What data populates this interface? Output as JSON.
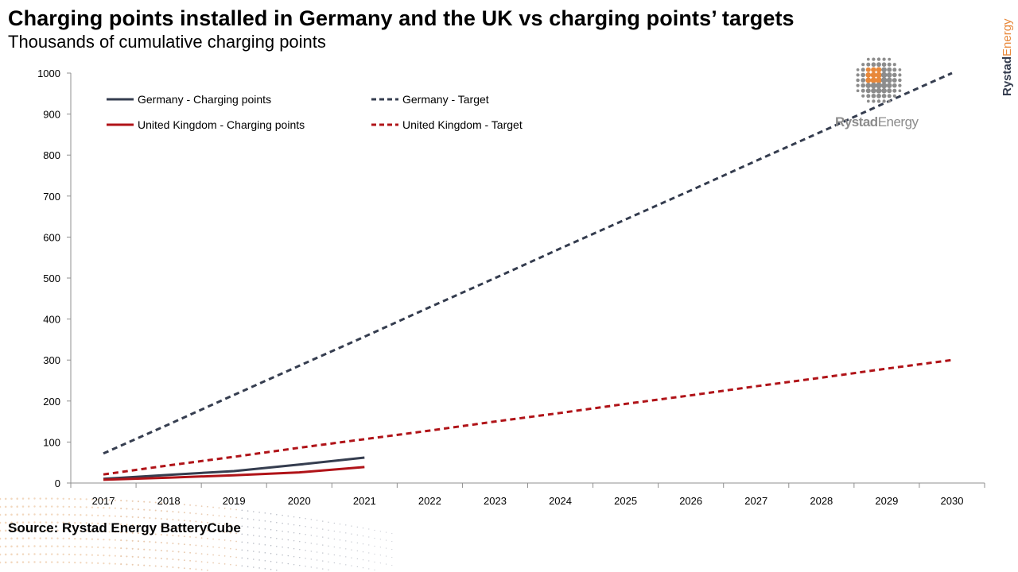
{
  "header": {
    "title": "Charging points installed in Germany and the UK vs charging points’ targets",
    "subtitle": "Thousands of cumulative charging points"
  },
  "footer": {
    "source": "Source: Rystad Energy BatteryCube"
  },
  "branding": {
    "logo_text": "RystadEnergy",
    "logo_text_part1": "Rystad",
    "logo_text_part2": "Energy",
    "side_text": "RystadEnergy"
  },
  "colors": {
    "germany": "#353d4f",
    "uk": "#b01318",
    "accent": "#e8883a",
    "logo_grey": "#8c8c8c"
  },
  "chart_data": {
    "type": "line",
    "title": "Charging points installed in Germany and the UK vs charging points’ targets",
    "subtitle": "Thousands of cumulative charging points",
    "xlabel": "",
    "ylabel": "",
    "x": [
      "2017",
      "2018",
      "2019",
      "2020",
      "2021",
      "2022",
      "2023",
      "2024",
      "2025",
      "2026",
      "2027",
      "2028",
      "2029",
      "2030"
    ],
    "ylim": [
      0,
      1000
    ],
    "yticks": [
      0,
      100,
      200,
      300,
      400,
      500,
      600,
      700,
      800,
      900,
      1000
    ],
    "grid": false,
    "legend_position": "top-left",
    "series": [
      {
        "name": "Germany - Charging points",
        "color": "#353d4f",
        "dash": false,
        "values": [
          10,
          20,
          29,
          45,
          62,
          null,
          null,
          null,
          null,
          null,
          null,
          null,
          null,
          null
        ]
      },
      {
        "name": "United Kingdom - Charging points",
        "color": "#b01318",
        "dash": false,
        "values": [
          8,
          13,
          19,
          26,
          39,
          null,
          null,
          null,
          null,
          null,
          null,
          null,
          null,
          null
        ]
      },
      {
        "name": "Germany - Target",
        "color": "#353d4f",
        "dash": true,
        "values": [
          72,
          143,
          215,
          286,
          357,
          429,
          500,
          572,
          643,
          714,
          786,
          857,
          929,
          1000
        ]
      },
      {
        "name": "United Kingdom - Target",
        "color": "#b01318",
        "dash": true,
        "values": [
          21,
          43,
          64,
          86,
          107,
          128,
          150,
          171,
          193,
          214,
          236,
          257,
          279,
          300
        ]
      }
    ]
  }
}
